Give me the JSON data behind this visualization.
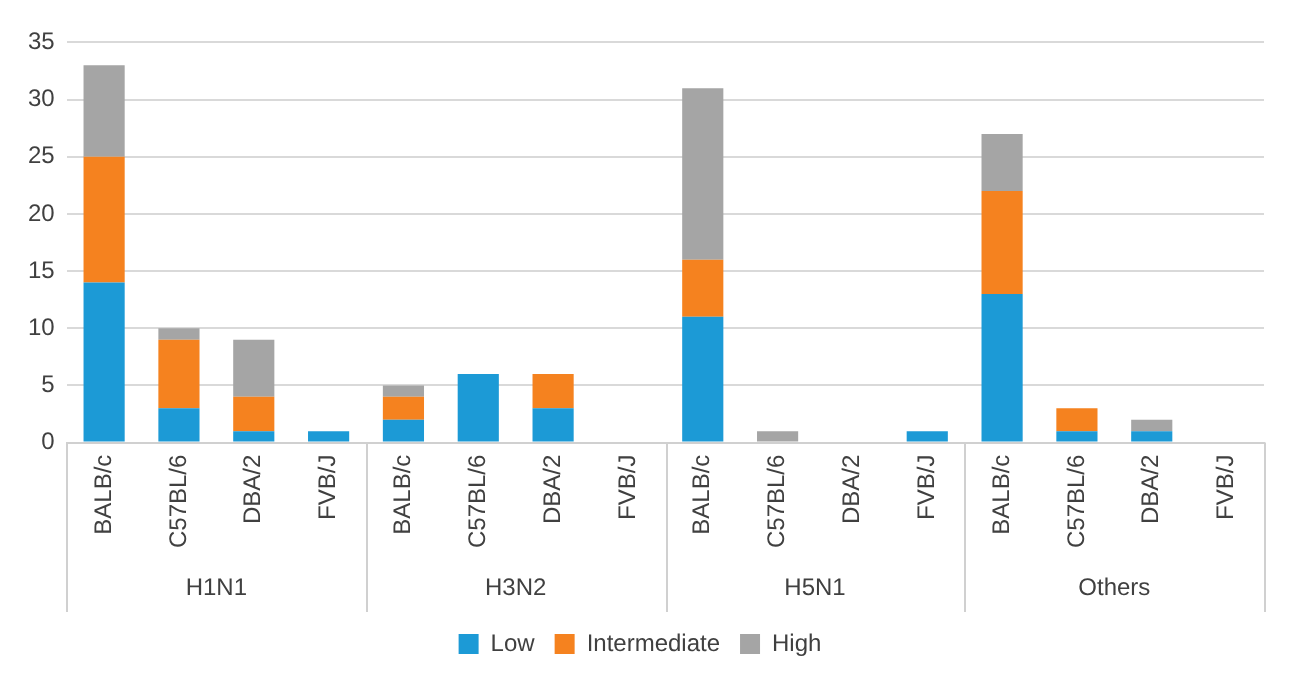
{
  "chart_data": {
    "type": "bar",
    "stacked": true,
    "categories": [
      "BALB/c",
      "C57BL/6",
      "DBA/2",
      "FVB/J",
      "BALB/c",
      "C57BL/6",
      "DBA/2",
      "FVB/J",
      "BALB/c",
      "C57BL/6",
      "DBA/2",
      "FVB/J",
      "BALB/c",
      "C57BL/6",
      "DBA/2",
      "FVB/J"
    ],
    "series": [
      {
        "name": "Low",
        "color": "#1c9ad6",
        "values": [
          14,
          3,
          1,
          1,
          2,
          6,
          3,
          0,
          11,
          0,
          0,
          1,
          13,
          1,
          1,
          0
        ]
      },
      {
        "name": "Intermediate",
        "color": "#f5821f",
        "values": [
          11,
          6,
          3,
          0,
          2,
          0,
          3,
          0,
          5,
          0,
          0,
          0,
          9,
          2,
          0,
          0
        ]
      },
      {
        "name": "High",
        "color": "#a5a5a5",
        "values": [
          8,
          1,
          5,
          0,
          1,
          0,
          0,
          0,
          15,
          1,
          0,
          0,
          5,
          0,
          1,
          0
        ]
      }
    ],
    "annotations": [
      "H1N1",
      "H3N2",
      "H5N1",
      "Others"
    ],
    "ylim": [
      0,
      35
    ],
    "yticks": [
      0,
      5,
      10,
      15,
      20,
      25,
      30,
      35
    ],
    "grid": "y",
    "legend": "bottom"
  }
}
